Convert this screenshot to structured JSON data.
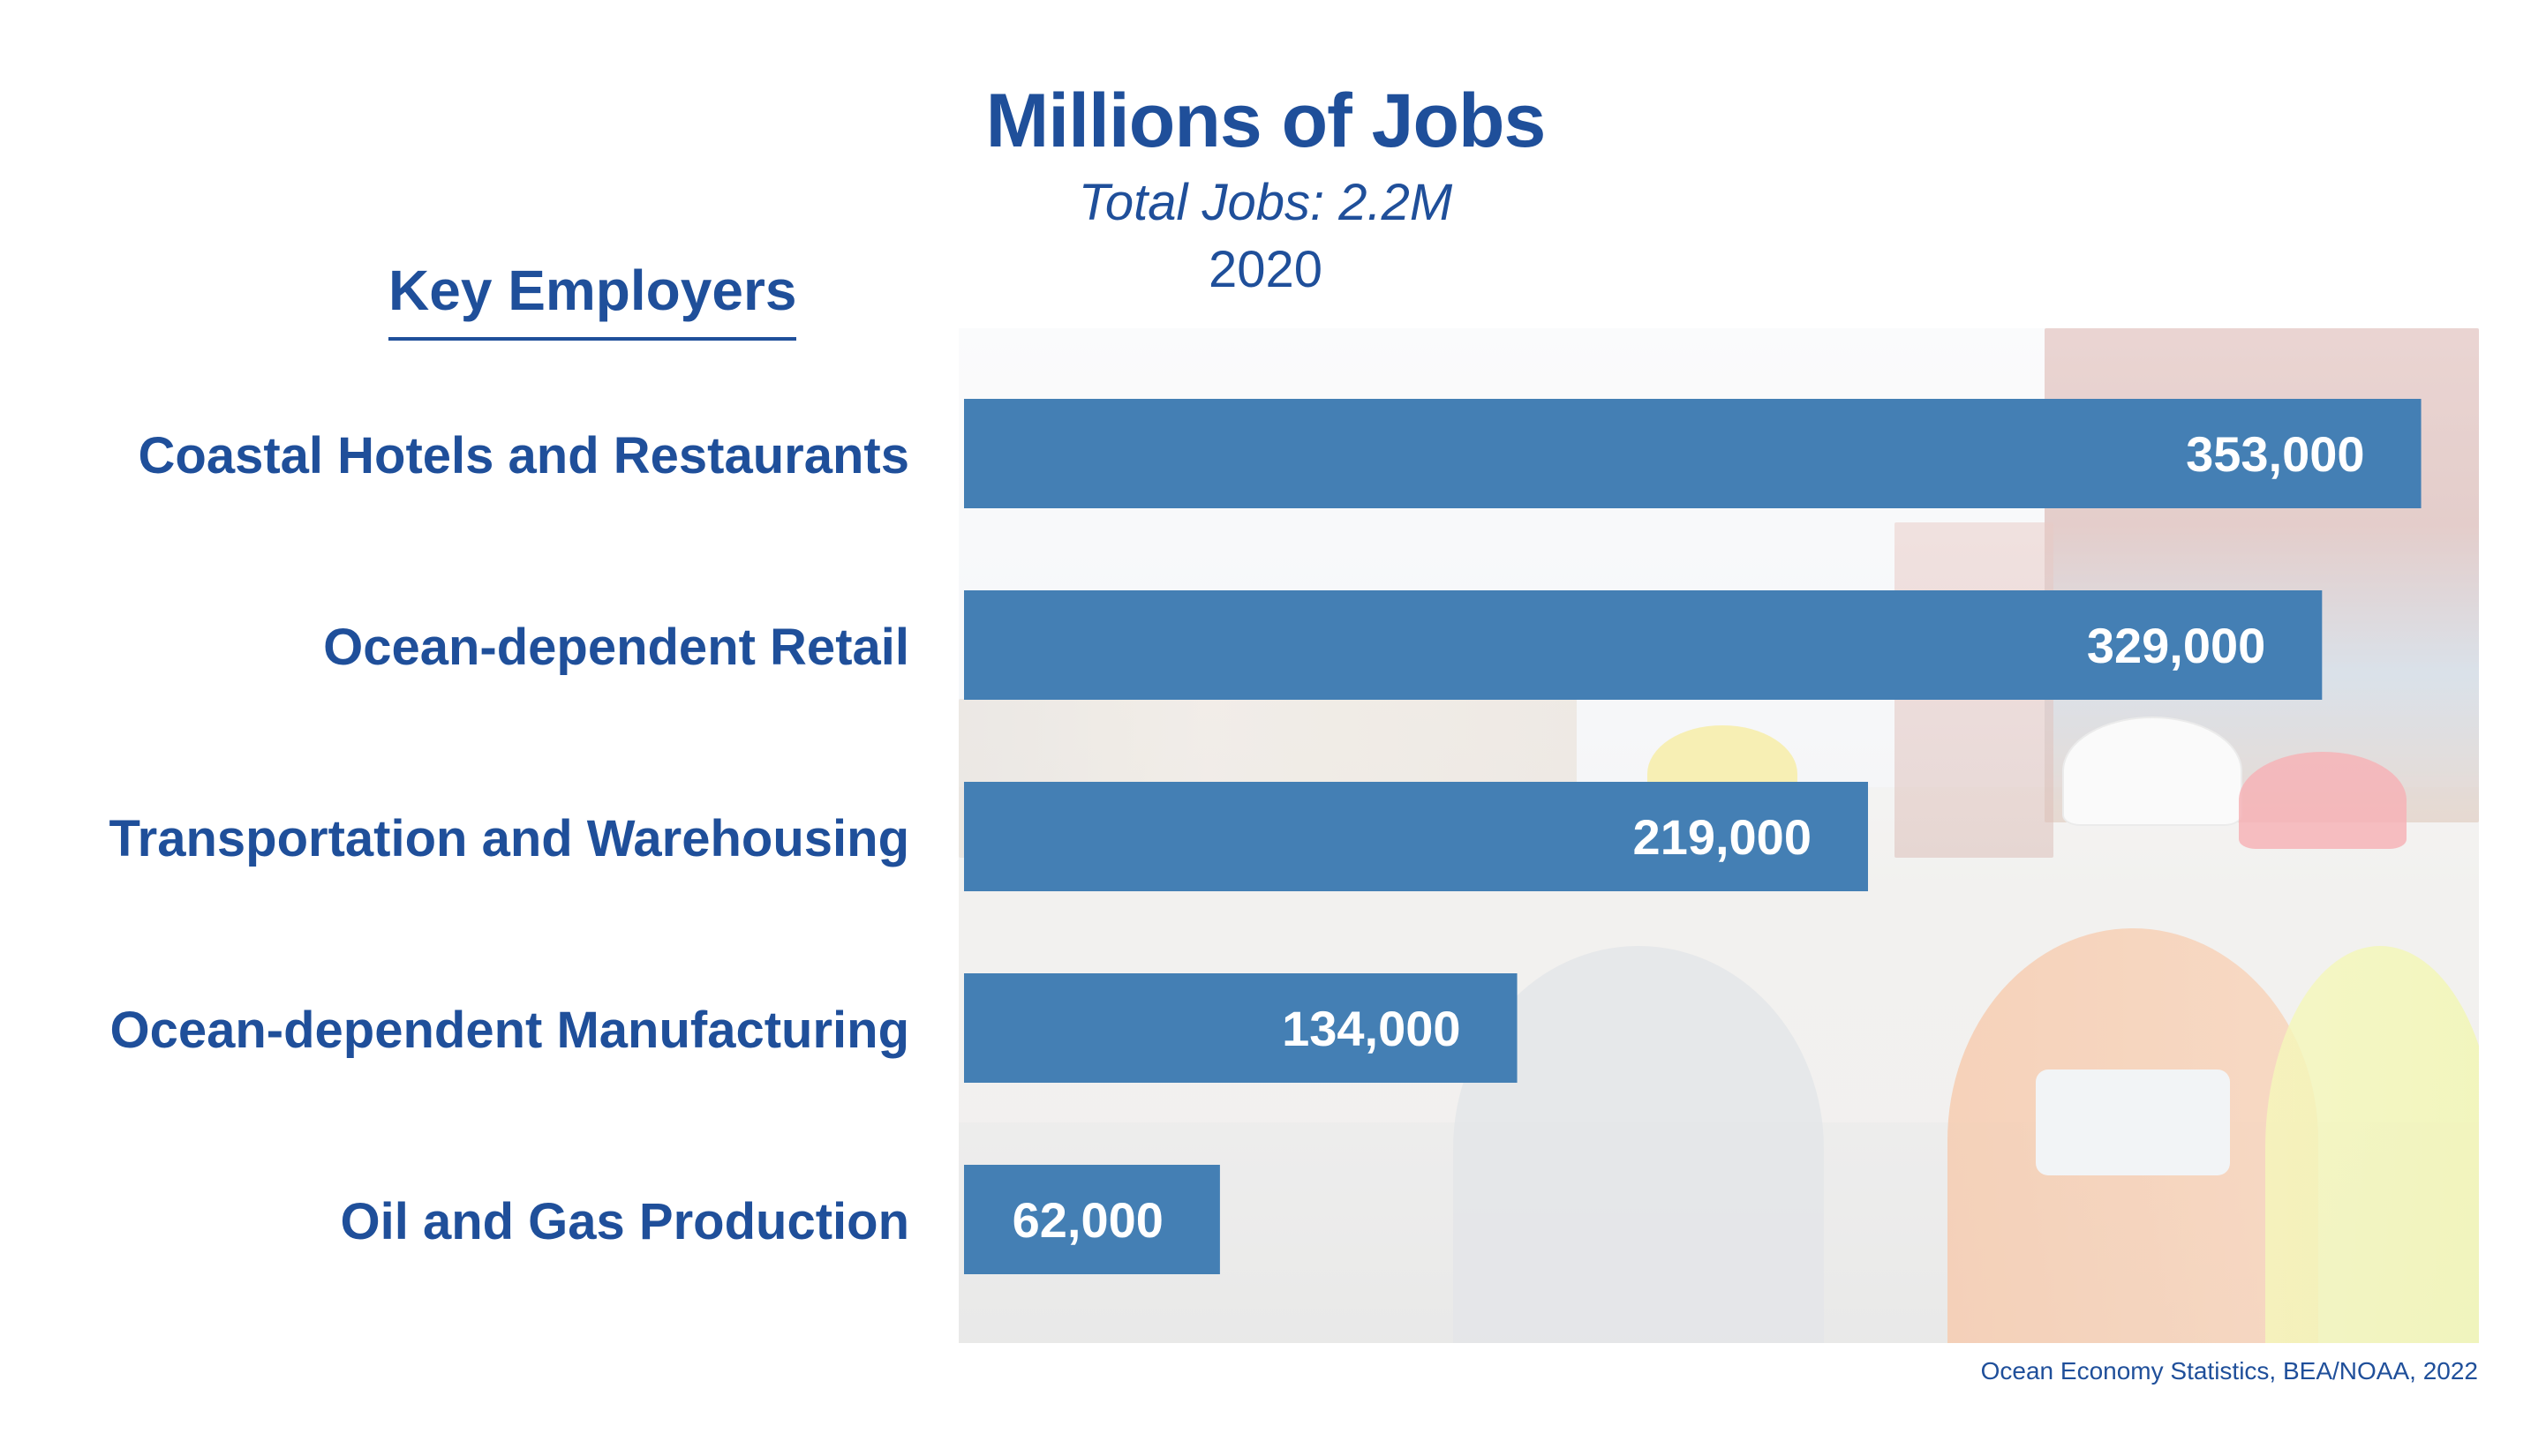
{
  "header": {
    "title": "Millions of Jobs",
    "subtitle": "Total Jobs: 2.2M",
    "year": "2020",
    "section": "Key Employers"
  },
  "source": "Ocean Economy Statistics, BEA/NOAA, 2022",
  "colors": {
    "bar": "#447fb4",
    "text": "#1f4f9a",
    "value_label": "#ffffff"
  },
  "chart_data": {
    "type": "bar",
    "orientation": "horizontal",
    "title": "Millions of Jobs",
    "subtitle": "Total Jobs: 2.2M",
    "categories": [
      "Coastal Hotels and Restaurants",
      "Ocean-dependent Retail",
      "Transportation and Warehousing",
      "Ocean-dependent Manufacturing",
      "Oil and Gas Production"
    ],
    "values": [
      353000,
      329000,
      219000,
      134000,
      62000
    ],
    "value_labels": [
      "353,000",
      "329,000",
      "219,000",
      "134,000",
      "62,000"
    ],
    "xlabel": "",
    "ylabel": "",
    "xlim": [
      0,
      367000
    ],
    "grid": false,
    "legend": "none"
  }
}
